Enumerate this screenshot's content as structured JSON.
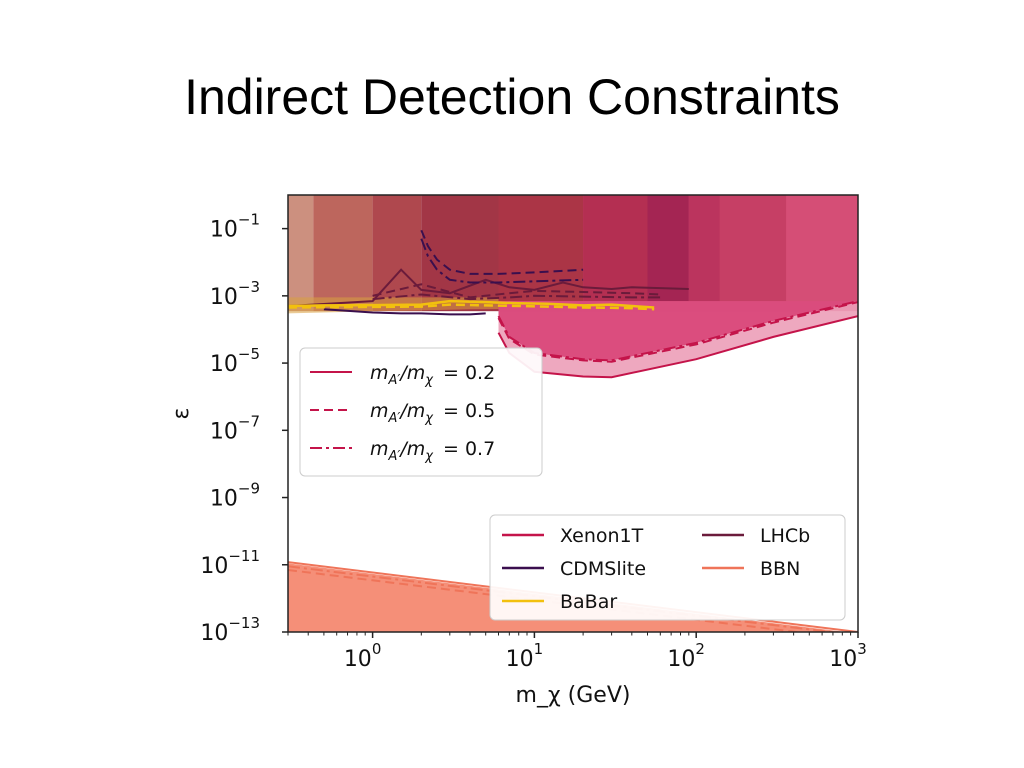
{
  "slide": {
    "title": "Indirect Detection Constraints"
  },
  "chart_data": {
    "type": "area",
    "xlabel": "m_χ (GeV)",
    "ylabel": "ε",
    "xscale": "log",
    "yscale": "log",
    "xlim": [
      0.3,
      1000
    ],
    "ylim": [
      1e-13,
      1
    ],
    "x_ticks": [
      {
        "value": 1,
        "base": "10",
        "exp": "0"
      },
      {
        "value": 10,
        "base": "10",
        "exp": "1"
      },
      {
        "value": 100,
        "base": "10",
        "exp": "2"
      },
      {
        "value": 1000,
        "base": "10",
        "exp": "3"
      }
    ],
    "y_ticks": [
      {
        "value": 0.1,
        "base": "10",
        "exp": "−1"
      },
      {
        "value": 0.001,
        "base": "10",
        "exp": "−3"
      },
      {
        "value": 1e-05,
        "base": "10",
        "exp": "−5"
      },
      {
        "value": 1e-07,
        "base": "10",
        "exp": "−7"
      },
      {
        "value": 1e-09,
        "base": "10",
        "exp": "−9"
      },
      {
        "value": 1e-11,
        "base": "10",
        "exp": "−11"
      },
      {
        "value": 1e-13,
        "base": "10",
        "exp": "−13"
      }
    ],
    "colors": {
      "xenon": "#c4144a",
      "xenon_fill": "#d9487a",
      "xenon_light": "#ec9fb8",
      "cdmslite": "#3a0f4e",
      "babar": "#f2c00e",
      "lhcb": "#6b1b3b",
      "bbn": "#ef7459",
      "bbn_fill": "#f58f78"
    },
    "ratio_legend": {
      "placement": "center-left",
      "items": [
        {
          "style": "solid",
          "label_main": "m",
          "sub1": "A′",
          "mid": "/m",
          "sub2": "χ",
          "value": "=  0.2"
        },
        {
          "style": "dashed",
          "label_main": "m",
          "sub1": "A′",
          "mid": "/m",
          "sub2": "χ",
          "value": "=  0.5"
        },
        {
          "style": "dashdot",
          "label_main": "m",
          "sub1": "A′",
          "mid": "/m",
          "sub2": "χ",
          "value": "=  0.7"
        }
      ]
    },
    "experiment_legend": {
      "placement": "lower-right",
      "items": [
        {
          "name": "Xenon1T",
          "color": "#c4144a"
        },
        {
          "name": "LHCb",
          "color": "#6b1b3b"
        },
        {
          "name": "CDMSlite",
          "color": "#3a0f4e"
        },
        {
          "name": "BBN",
          "color": "#ef7459"
        },
        {
          "name": "BaBar",
          "color": "#f2c00e"
        }
      ]
    },
    "bands": [
      {
        "x0": 0.3,
        "x1": 0.43,
        "color": "#c98a78",
        "opacity": 0.95
      },
      {
        "x0": 0.43,
        "x1": 1.0,
        "color": "#b95e54",
        "opacity": 0.95
      },
      {
        "x0": 1.0,
        "x1": 2.0,
        "color": "#ab3e44",
        "opacity": 0.95
      },
      {
        "x0": 2.0,
        "x1": 6.0,
        "color": "#9d2b3c",
        "opacity": 0.95
      },
      {
        "x0": 6.0,
        "x1": 20.0,
        "color": "#a2313c",
        "opacity": 0.95
      },
      {
        "x0": 20.0,
        "x1": 50.0,
        "color": "#ad2a4a",
        "opacity": 0.95
      },
      {
        "x0": 50.0,
        "x1": 90.0,
        "color": "#9a1f4b",
        "opacity": 0.95
      },
      {
        "x0": 90.0,
        "x1": 140.0,
        "color": "#b53058",
        "opacity": 0.95
      },
      {
        "x0": 140.0,
        "x1": 360.0,
        "color": "#c23d60",
        "opacity": 0.95
      },
      {
        "x0": 360.0,
        "x1": 1000.0,
        "color": "#d44f74",
        "opacity": 0.95
      }
    ],
    "babar_band": {
      "x": [
        0.3,
        0.5,
        1,
        2,
        4,
        8,
        15,
        30,
        55
      ],
      "y_low": [
        0.0003,
        0.00032,
        0.00035,
        0.00037,
        0.0004,
        0.00041,
        0.00042,
        0.00041,
        0.0004
      ]
    },
    "xenon_region": {
      "x_min": 6,
      "inner": {
        "x": [
          6,
          7,
          10,
          20,
          30,
          100,
          300,
          1000
        ],
        "y": [
          0.00025,
          6e-05,
          2e-05,
          1.3e-05,
          1.2e-05,
          4e-05,
          0.00018,
          0.0007
        ]
      },
      "outer": {
        "x": [
          6,
          7,
          10,
          20,
          30,
          100,
          300,
          1000
        ],
        "y": [
          8e-05,
          2e-05,
          5.5e-06,
          4e-06,
          3.8e-06,
          1.3e-05,
          6e-05,
          0.00025
        ]
      }
    },
    "xenon_curves": [
      {
        "style": "solid",
        "x": [
          6,
          7,
          10,
          20,
          30,
          100,
          300,
          1000
        ],
        "y": [
          8e-05,
          2e-05,
          5.5e-06,
          4e-06,
          3.8e-06,
          1.3e-05,
          6e-05,
          0.00025
        ]
      },
      {
        "style": "dashed",
        "x": [
          6,
          7,
          10,
          20,
          30,
          100,
          300,
          1000
        ],
        "y": [
          0.00022,
          5.2e-05,
          1.8e-05,
          1.2e-05,
          1.1e-05,
          3.6e-05,
          0.00016,
          0.00065
        ]
      },
      {
        "style": "dashdot",
        "x": [
          6,
          7,
          10,
          20,
          30,
          100,
          300,
          1000
        ],
        "y": [
          0.00025,
          6e-05,
          2e-05,
          1.3e-05,
          1.2e-05,
          4e-05,
          0.00018,
          0.0007
        ]
      }
    ],
    "cdms_curves": [
      {
        "style": "solid",
        "x": [
          0.5,
          1,
          1.5,
          2,
          3,
          4,
          5
        ],
        "y": [
          0.0004,
          0.00032,
          0.0003,
          0.0003,
          0.00028,
          0.00028,
          0.0003
        ]
      },
      {
        "style": "dashed",
        "x": [
          2,
          2.2,
          2.5,
          3,
          4,
          6,
          10,
          20
        ],
        "y": [
          0.09,
          0.03,
          0.012,
          0.006,
          0.0045,
          0.0045,
          0.005,
          0.006
        ]
      },
      {
        "style": "dashdot",
        "x": [
          2,
          2.2,
          2.5,
          3,
          4,
          6,
          10,
          20
        ],
        "y": [
          0.05,
          0.015,
          0.006,
          0.003,
          0.0025,
          0.0025,
          0.0027,
          0.003
        ]
      }
    ],
    "lhcb_curves": [
      {
        "style": "solid",
        "x": [
          0.3,
          0.6,
          1,
          1.5,
          2,
          3,
          5,
          7,
          10,
          15,
          20,
          30,
          40,
          60,
          90
        ],
        "y": [
          0.0005,
          0.0006,
          0.0007,
          0.006,
          0.0015,
          0.0012,
          0.003,
          0.0018,
          0.0015,
          0.0025,
          0.0018,
          0.0016,
          0.0018,
          0.0017,
          0.0016
        ]
      },
      {
        "style": "dashed",
        "x": [
          1,
          2,
          4,
          7,
          10,
          20,
          40,
          60
        ],
        "y": [
          0.001,
          0.0022,
          0.0009,
          0.0012,
          0.0014,
          0.0013,
          0.0012,
          0.0011
        ]
      },
      {
        "style": "dashdot",
        "x": [
          1,
          2,
          4,
          7,
          10,
          20,
          40,
          60
        ],
        "y": [
          0.0008,
          0.0011,
          0.0008,
          0.0009,
          0.001,
          0.00095,
          0.0009,
          0.0009
        ]
      }
    ],
    "babar_curves": [
      {
        "style": "solid",
        "x": [
          0.3,
          0.5,
          1,
          2,
          3,
          5,
          8,
          12,
          20,
          30,
          40,
          55
        ],
        "y": [
          0.0005,
          0.00052,
          0.00053,
          0.00055,
          0.0007,
          0.00065,
          0.0006,
          0.00058,
          0.00052,
          0.00055,
          0.0005,
          0.00045
        ]
      },
      {
        "style": "dashed",
        "x": [
          0.3,
          0.5,
          1,
          2,
          3,
          5,
          8,
          12,
          20,
          30,
          40,
          55
        ],
        "y": [
          0.00045,
          0.00046,
          0.00047,
          0.00048,
          0.00055,
          0.00052,
          0.0005,
          0.00048,
          0.00045,
          0.00044,
          0.00043,
          0.0004
        ]
      }
    ],
    "bbn": {
      "x": [
        0.3,
        1000
      ],
      "fill_top": [
        1.1e-11,
        9e-14
      ],
      "curves": [
        {
          "style": "solid",
          "y": [
            1.2e-11,
            1e-13
          ]
        },
        {
          "style": "dashed",
          "y": [
            7e-12,
            6e-14
          ]
        },
        {
          "style": "dashdot",
          "y": [
            9e-12,
            8e-14
          ]
        }
      ]
    }
  }
}
